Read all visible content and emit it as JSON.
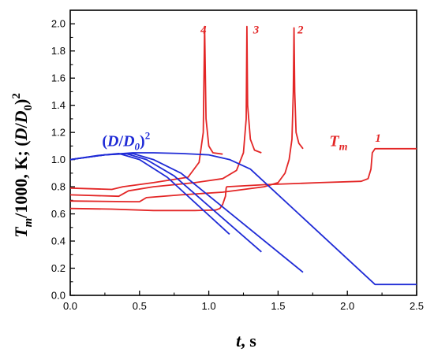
{
  "chart_data": {
    "type": "line",
    "x_axis": {
      "label_var": "t",
      "label_unit": ", s",
      "range": [
        0.0,
        2.5
      ],
      "ticks": [
        0.0,
        0.5,
        1.0,
        1.5,
        2.0,
        2.5
      ],
      "tick_labels": [
        "0.0",
        "0.5",
        "1.0",
        "1.5",
        "2.0",
        "2.5"
      ]
    },
    "y_axis": {
      "label_T": "T",
      "label_m": "m",
      "label_mid": "/1000, K; (",
      "label_D": "D",
      "label_slash": "/",
      "label_D0": "D",
      "label_0": "0",
      "label_close": ")",
      "label_sq": "2",
      "range": [
        0.0,
        2.1
      ],
      "ticks": [
        0.0,
        0.2,
        0.4,
        0.6,
        0.8,
        1.0,
        1.2,
        1.4,
        1.6,
        1.8,
        2.0
      ],
      "tick_labels": [
        "0.0",
        "0.2",
        "0.4",
        "0.6",
        "0.8",
        "1.0",
        "1.2",
        "1.4",
        "1.6",
        "1.8",
        "2.0"
      ]
    },
    "colors": {
      "temperature": "#e32626",
      "diameter": "#1f2bd6",
      "axis": "#000000"
    },
    "annotations": {
      "tm_T": "T",
      "tm_m": "m",
      "dd_open": "(",
      "dd_D": "D",
      "dd_slash": "/",
      "dd_D0": "D",
      "dd_0": "0",
      "dd_close": ")",
      "dd_sq": "2"
    },
    "series": [
      {
        "name": "1",
        "kind": "temperature",
        "points": [
          [
            0.0,
            0.64
          ],
          [
            0.3,
            0.635
          ],
          [
            0.6,
            0.625
          ],
          [
            0.9,
            0.625
          ],
          [
            1.05,
            0.628
          ],
          [
            1.08,
            0.64
          ],
          [
            1.1,
            0.67
          ],
          [
            1.12,
            0.73
          ],
          [
            1.125,
            0.79
          ],
          [
            1.13,
            0.8
          ],
          [
            1.4,
            0.815
          ],
          [
            1.8,
            0.83
          ],
          [
            2.1,
            0.84
          ],
          [
            2.15,
            0.86
          ],
          [
            2.17,
            0.93
          ],
          [
            2.18,
            1.05
          ],
          [
            2.2,
            1.08
          ],
          [
            2.5,
            1.08
          ]
        ]
      },
      {
        "name": "2",
        "kind": "temperature",
        "points": [
          [
            0.0,
            0.695
          ],
          [
            0.45,
            0.69
          ],
          [
            0.5,
            0.69
          ],
          [
            0.55,
            0.72
          ],
          [
            0.8,
            0.74
          ],
          [
            1.1,
            0.76
          ],
          [
            1.4,
            0.8
          ],
          [
            1.5,
            0.83
          ],
          [
            1.55,
            0.9
          ],
          [
            1.58,
            1.0
          ],
          [
            1.6,
            1.15
          ],
          [
            1.61,
            1.5
          ],
          [
            1.615,
            1.97
          ],
          [
            1.62,
            1.5
          ],
          [
            1.63,
            1.2
          ],
          [
            1.65,
            1.12
          ],
          [
            1.68,
            1.08
          ]
        ]
      },
      {
        "name": "3",
        "kind": "temperature",
        "points": [
          [
            0.0,
            0.74
          ],
          [
            0.35,
            0.73
          ],
          [
            0.42,
            0.77
          ],
          [
            0.6,
            0.8
          ],
          [
            0.9,
            0.83
          ],
          [
            1.1,
            0.86
          ],
          [
            1.2,
            0.92
          ],
          [
            1.25,
            1.05
          ],
          [
            1.27,
            1.3
          ],
          [
            1.275,
            1.98
          ],
          [
            1.28,
            1.4
          ],
          [
            1.3,
            1.15
          ],
          [
            1.33,
            1.07
          ],
          [
            1.38,
            1.05
          ]
        ]
      },
      {
        "name": "4",
        "kind": "temperature",
        "points": [
          [
            0.0,
            0.79
          ],
          [
            0.3,
            0.78
          ],
          [
            0.38,
            0.8
          ],
          [
            0.6,
            0.83
          ],
          [
            0.85,
            0.87
          ],
          [
            0.93,
            0.98
          ],
          [
            0.96,
            1.2
          ],
          [
            0.97,
            1.98
          ],
          [
            0.98,
            1.3
          ],
          [
            1.0,
            1.1
          ],
          [
            1.03,
            1.05
          ],
          [
            1.1,
            1.04
          ]
        ]
      },
      {
        "name": "d1",
        "kind": "diameter",
        "points": [
          [
            0.0,
            1.0
          ],
          [
            0.25,
            1.035
          ],
          [
            0.45,
            1.05
          ],
          [
            0.6,
            1.05
          ],
          [
            0.8,
            1.045
          ],
          [
            1.0,
            1.035
          ],
          [
            1.15,
            1.0
          ],
          [
            1.3,
            0.93
          ],
          [
            2.2,
            0.08
          ],
          [
            2.5,
            0.08
          ]
        ]
      },
      {
        "name": "d2",
        "kind": "diameter",
        "points": [
          [
            0.0,
            1.0
          ],
          [
            0.25,
            1.035
          ],
          [
            0.45,
            1.045
          ],
          [
            0.6,
            1.0
          ],
          [
            0.8,
            0.9
          ],
          [
            1.68,
            0.17
          ]
        ]
      },
      {
        "name": "d3",
        "kind": "diameter",
        "points": [
          [
            0.0,
            1.0
          ],
          [
            0.25,
            1.035
          ],
          [
            0.4,
            1.045
          ],
          [
            0.55,
            1.0
          ],
          [
            0.75,
            0.88
          ],
          [
            1.38,
            0.32
          ]
        ]
      },
      {
        "name": "d4",
        "kind": "diameter",
        "points": [
          [
            0.0,
            1.0
          ],
          [
            0.2,
            1.03
          ],
          [
            0.35,
            1.045
          ],
          [
            0.5,
            1.0
          ],
          [
            0.7,
            0.87
          ],
          [
            1.15,
            0.45
          ]
        ]
      }
    ],
    "series_labels": [
      {
        "text": "1",
        "at": [
          2.2,
          1.13
        ]
      },
      {
        "text": "2",
        "at": [
          1.64,
          1.93
        ]
      },
      {
        "text": "3",
        "at": [
          1.32,
          1.93
        ]
      },
      {
        "text": "4",
        "at": [
          0.94,
          1.93
        ]
      }
    ],
    "annotation_positions": {
      "tm": [
        1.87,
        1.1
      ],
      "dd": [
        0.23,
        1.1
      ]
    }
  }
}
